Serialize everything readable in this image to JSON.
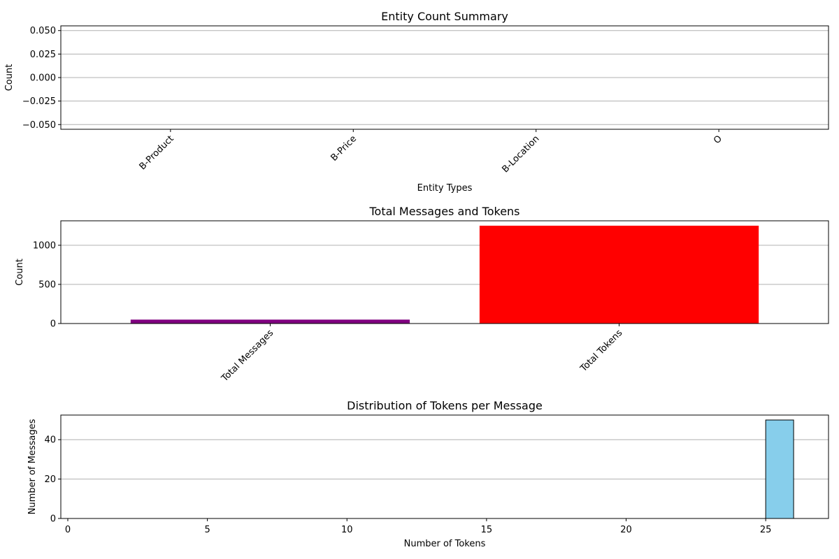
{
  "chart_data": [
    {
      "type": "bar",
      "title": "Entity Count Summary",
      "xlabel": "Entity Types",
      "ylabel": "Count",
      "categories": [
        "B-Product",
        "B-Price",
        "B-Location",
        "O"
      ],
      "values": [
        0,
        0,
        0,
        0
      ],
      "ylim": [
        -0.055,
        0.055
      ],
      "yticks": [
        -0.05,
        -0.025,
        0,
        0.025,
        0.05
      ],
      "ytick_labels": [
        "−0.050",
        "−0.025",
        "0.000",
        "0.025",
        "0.050"
      ],
      "xtick_rotation": 45,
      "grid": "y"
    },
    {
      "type": "bar",
      "title": "Total Messages and Tokens",
      "xlabel": "",
      "ylabel": "Count",
      "categories": [
        "Total Messages",
        "Total Tokens"
      ],
      "values": [
        50,
        1250
      ],
      "colors": [
        "#800080",
        "#ff0000"
      ],
      "ylim": [
        0,
        1312.5
      ],
      "yticks": [
        0,
        500,
        1000
      ],
      "ytick_labels": [
        "0",
        "500",
        "1000"
      ],
      "xtick_rotation": 45,
      "grid": "y"
    },
    {
      "type": "bar",
      "subtype": "histogram",
      "title": "Distribution of Tokens per Message",
      "xlabel": "Number of Tokens",
      "ylabel": "Number of Messages",
      "bins": [
        [
          1,
          2
        ],
        [
          2,
          3
        ],
        [
          3,
          4
        ],
        [
          4,
          5
        ],
        [
          5,
          6
        ],
        [
          6,
          7
        ],
        [
          7,
          8
        ],
        [
          8,
          9
        ],
        [
          9,
          10
        ],
        [
          10,
          11
        ],
        [
          11,
          12
        ],
        [
          12,
          13
        ],
        [
          13,
          14
        ],
        [
          14,
          15
        ],
        [
          15,
          16
        ],
        [
          16,
          17
        ],
        [
          17,
          18
        ],
        [
          18,
          19
        ],
        [
          19,
          20
        ],
        [
          20,
          21
        ],
        [
          21,
          22
        ],
        [
          22,
          23
        ],
        [
          23,
          24
        ],
        [
          24,
          25
        ],
        [
          25,
          26
        ]
      ],
      "counts": [
        0,
        0,
        0,
        0,
        0,
        0,
        0,
        0,
        0,
        0,
        0,
        0,
        0,
        0,
        0,
        0,
        0,
        0,
        0,
        0,
        0,
        0,
        0,
        0,
        50
      ],
      "color": "#87ceeb",
      "edgecolor": "#000000",
      "xlim": [
        -0.25,
        27.25
      ],
      "ylim": [
        0,
        52.5
      ],
      "xticks": [
        0,
        5,
        10,
        15,
        20,
        25
      ],
      "xtick_labels": [
        "0",
        "5",
        "10",
        "15",
        "20",
        "25"
      ],
      "yticks": [
        0,
        20,
        40
      ],
      "ytick_labels": [
        "0",
        "20",
        "40"
      ],
      "grid": "y"
    }
  ]
}
